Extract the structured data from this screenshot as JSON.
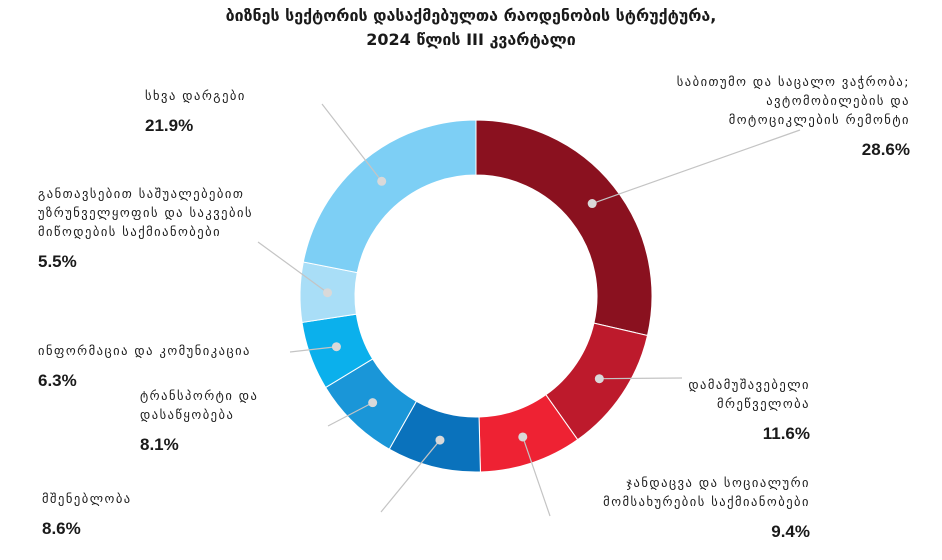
{
  "chart_data": {
    "type": "pie",
    "title_line1": "ბიზნეს სექტორის დასაქმებულთა რაოდენობის სტრუქტურა,",
    "title_line2": "2024 წლის  III კვარტალი",
    "value_suffix": "%",
    "slices": [
      {
        "label_lines": [
          "საბითუმო და საცალო ვაჭრობა;",
          "ავტომობილების და",
          "მოტოციკლების რემონტი"
        ],
        "value": 28.6,
        "color": "#8a111f"
      },
      {
        "label_lines": [
          "დამამუშავებელი",
          "მრეწველობა"
        ],
        "value": 11.6,
        "color": "#bd1a2c"
      },
      {
        "label_lines": [
          "ჯანდაცვა და სოციალური",
          "მომსახურების საქმიანობები"
        ],
        "value": 9.4,
        "color": "#ee2233"
      },
      {
        "label_lines": [
          "მშენებლობა"
        ],
        "value": 8.6,
        "color": "#0a72bc"
      },
      {
        "label_lines": [
          "ტრანსპორტი და",
          "დასაწყობება"
        ],
        "value": 8.1,
        "color": "#1a96d8"
      },
      {
        "label_lines": [
          "ინფორმაცია და კომუნიკაცია"
        ],
        "value": 6.3,
        "color": "#0bb0ec"
      },
      {
        "label_lines": [
          "განთავსებით საშუალებებით",
          "უზრუნველყოფის და საკვების",
          "მიწოდების საქმიანობები"
        ],
        "value": 5.5,
        "color": "#a9def7"
      },
      {
        "label_lines": [
          "სხვა დარგები"
        ],
        "value": 21.9,
        "color": "#7dcff5"
      }
    ]
  }
}
